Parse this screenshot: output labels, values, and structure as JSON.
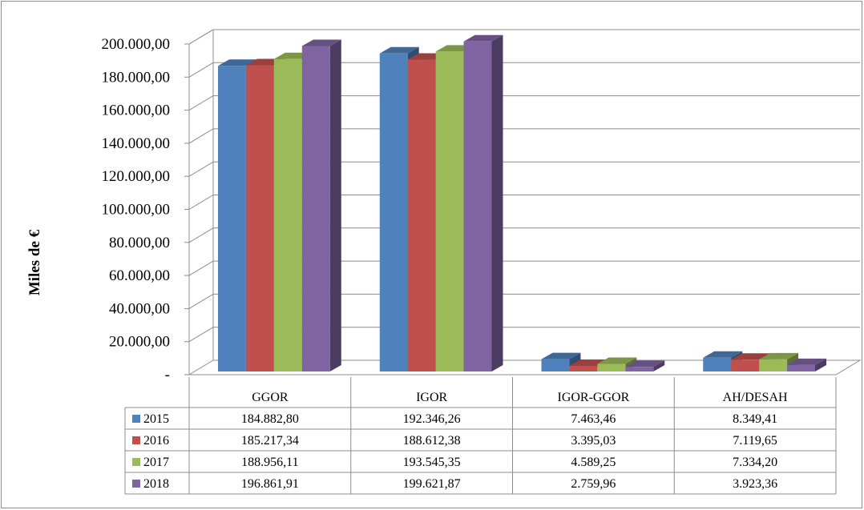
{
  "chart_data": {
    "type": "bar",
    "title": "",
    "xlabel": "",
    "ylabel": "Miles de €",
    "ylim": [
      0,
      200000
    ],
    "y_tick_step": 20000,
    "y_tick_labels": [
      "-",
      "20.000,00",
      "40.000,00",
      "60.000,00",
      "80.000,00",
      "100.000,00",
      "120.000,00",
      "140.000,00",
      "160.000,00",
      "180.000,00",
      "200.000,00"
    ],
    "categories": [
      "GGOR",
      "IGOR",
      "IGOR-GGOR",
      "AH/DESAH"
    ],
    "series": [
      {
        "name": "2015",
        "color": "#4f81bd",
        "values": [
          184882.8,
          192346.26,
          7463.46,
          8349.41
        ],
        "labels": [
          "184.882,80",
          "192.346,26",
          "7.463,46",
          "8.349,41"
        ]
      },
      {
        "name": "2016",
        "color": "#c0504d",
        "values": [
          185217.34,
          188612.38,
          3395.03,
          7119.65
        ],
        "labels": [
          "185.217,34",
          "188.612,38",
          "3.395,03",
          "7.119,65"
        ]
      },
      {
        "name": "2017",
        "color": "#9bbb59",
        "values": [
          188956.11,
          193545.35,
          4589.25,
          7334.2
        ],
        "labels": [
          "188.956,11",
          "193.545,35",
          "4.589,25",
          "7.334,20"
        ]
      },
      {
        "name": "2018",
        "color": "#8064a2",
        "values": [
          196861.91,
          199621.87,
          2759.96,
          3923.36
        ],
        "labels": [
          "196.861,91",
          "199.621,87",
          "2.759,96",
          "3.923,36"
        ]
      }
    ],
    "grid": true,
    "three_d": true,
    "legend": "data-table"
  }
}
